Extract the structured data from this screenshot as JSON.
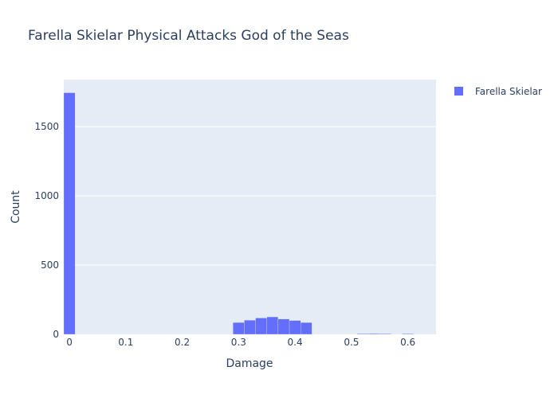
{
  "chart_data": {
    "type": "bar",
    "title": "Farella Skielar Physical Attacks God of the Seas",
    "xlabel": "Damage",
    "ylabel": "Count",
    "xlim": [
      -0.01,
      0.65
    ],
    "ylim": [
      0,
      1840
    ],
    "x_ticks": [
      0,
      0.1,
      0.2,
      0.3,
      0.4,
      0.5,
      0.6
    ],
    "x_tick_labels": [
      "0",
      "0.1",
      "0.2",
      "0.3",
      "0.4",
      "0.5",
      "0.6"
    ],
    "y_ticks": [
      0,
      500,
      1000,
      1500
    ],
    "y_tick_labels": [
      "0",
      "500",
      "1000",
      "1500"
    ],
    "bin_width": 0.02,
    "grid": true,
    "legend_position": "top-right",
    "bar_color": "#636efa",
    "plot_bg": "#e5ecf6",
    "series": [
      {
        "name": "Farella Skielar",
        "bins": [
          {
            "start": -0.01,
            "end": 0.01,
            "count": 1745
          },
          {
            "start": 0.29,
            "end": 0.31,
            "count": 85
          },
          {
            "start": 0.31,
            "end": 0.33,
            "count": 102
          },
          {
            "start": 0.33,
            "end": 0.35,
            "count": 118
          },
          {
            "start": 0.35,
            "end": 0.37,
            "count": 126
          },
          {
            "start": 0.37,
            "end": 0.39,
            "count": 110
          },
          {
            "start": 0.39,
            "end": 0.41,
            "count": 100
          },
          {
            "start": 0.41,
            "end": 0.43,
            "count": 85
          },
          {
            "start": 0.51,
            "end": 0.53,
            "count": 4
          },
          {
            "start": 0.53,
            "end": 0.55,
            "count": 5
          },
          {
            "start": 0.55,
            "end": 0.57,
            "count": 4
          },
          {
            "start": 0.59,
            "end": 0.61,
            "count": 4
          }
        ]
      }
    ]
  }
}
